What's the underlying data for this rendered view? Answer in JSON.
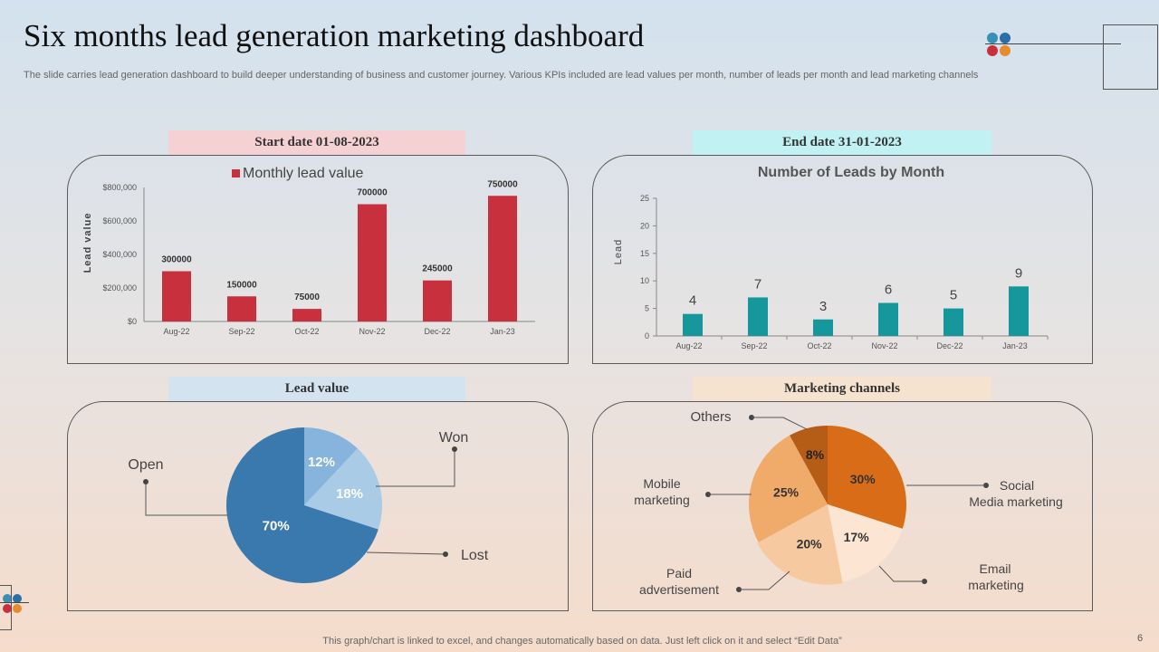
{
  "header": {
    "title": "Six months lead generation marketing dashboard",
    "subtitle": "The slide carries lead generation dashboard to build deeper understanding of business and customer journey. Various KPIs included are lead values per month, number of leads per month and lead marketing channels"
  },
  "labels": {
    "start": "Start date 01-08-2023",
    "end": "End date 31-01-2023",
    "lead_value": "Lead value",
    "marketing": "Marketing channels"
  },
  "footer": {
    "note": "This graph/chart is linked to excel,  and changes automatically based on data. Just left click on it and select “Edit Data”",
    "page": "6"
  },
  "colors": {
    "red": "#c8303e",
    "teal": "#16979b",
    "blue_dark": "#3a79ae",
    "blue_light": "#a9cbe5",
    "blue_mid": "#86b4dc",
    "orange_dark": "#d96c16",
    "orange_brown": "#b55d16",
    "orange_mid": "#f0aa6a",
    "orange_light": "#f6c9a0",
    "cream": "#fce6d3"
  },
  "chart_data": [
    {
      "type": "bar",
      "title": "Monthly lead value",
      "legend": "Monthly lead value",
      "ylabel": "Lead value",
      "xlabel": "",
      "categories": [
        "Aug-22",
        "Sep-22",
        "Oct-22",
        "Nov-22",
        "Dec-22",
        "Jan-23"
      ],
      "values": [
        300000,
        150000,
        75000,
        700000,
        245000,
        750000
      ],
      "data_labels": [
        "300000",
        "150000",
        "75000",
        "700000",
        "245000",
        "750000"
      ],
      "ylim": [
        0,
        800000
      ],
      "yticks": [
        0,
        200000,
        400000,
        600000,
        800000
      ],
      "ytick_labels": [
        "$0",
        "$200,000",
        "$400,000",
        "$600,000",
        "$800,000"
      ]
    },
    {
      "type": "bar",
      "title": "Number of Leads by Month",
      "ylabel": "Lead",
      "xlabel": "",
      "categories": [
        "Aug-22",
        "Sep-22",
        "Oct-22",
        "Nov-22",
        "Dec-22",
        "Jan-23"
      ],
      "values": [
        4,
        7,
        3,
        6,
        5,
        9
      ],
      "data_labels": [
        "4",
        "7",
        "3",
        "6",
        "5",
        "9"
      ],
      "ylim": [
        0,
        25
      ],
      "yticks": [
        0,
        5,
        10,
        15,
        20,
        25
      ],
      "ytick_labels": [
        "0",
        "5",
        "10",
        "15",
        "20",
        "25"
      ]
    },
    {
      "type": "pie",
      "title": "Lead value",
      "slices": [
        {
          "name": "Won",
          "value": 12,
          "label": "12%"
        },
        {
          "name": "Lost",
          "value": 18,
          "label": "18%"
        },
        {
          "name": "Open",
          "value": 70,
          "label": "70%"
        }
      ]
    },
    {
      "type": "pie",
      "title": "Marketing channels",
      "slices": [
        {
          "name": "Social Media marketing",
          "value": 30,
          "label": "30%"
        },
        {
          "name": "Email marketing",
          "value": 17,
          "label": "17%"
        },
        {
          "name": "Paid advertisement",
          "value": 20,
          "label": "20%"
        },
        {
          "name": "Mobile marketing",
          "value": 25,
          "label": "25%"
        },
        {
          "name": "Others",
          "value": 8,
          "label": "8%"
        }
      ],
      "callouts": {
        "others": "Others",
        "mobile": [
          "Mobile",
          "marketing"
        ],
        "paid": [
          "Paid",
          "advertisement"
        ],
        "social": [
          "Social",
          "Media marketing"
        ],
        "email": [
          "Email",
          "marketing"
        ]
      }
    }
  ]
}
